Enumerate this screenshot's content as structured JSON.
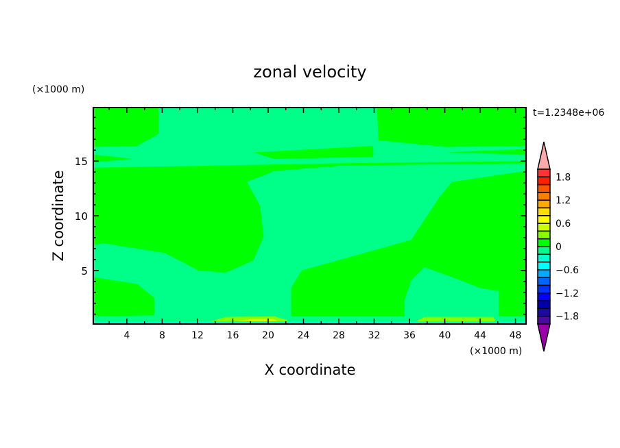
{
  "chart_data": {
    "type": "heatmap",
    "subtype": "filled-contour",
    "title": "zonal velocity",
    "xlabel": "X coordinate",
    "ylabel": "Z coordinate",
    "x_unit": "(×1000 m)",
    "y_unit": "(×1000 m)",
    "time_label": "t=1.2348e+06",
    "xlim": [
      0.2,
      49.2
    ],
    "ylim": [
      0.1,
      19.9
    ],
    "xticks": [
      4,
      8,
      12,
      16,
      20,
      24,
      28,
      32,
      36,
      40,
      44,
      48
    ],
    "yticks": [
      5,
      10,
      15
    ],
    "background_level": 0.1,
    "regions": [
      {
        "level": -0.1,
        "points": [
          [
            7.6,
            19.9
          ],
          [
            32.3,
            19.9
          ],
          [
            32.5,
            16.9
          ],
          [
            40.1,
            16.3
          ],
          [
            49.2,
            16.4
          ],
          [
            49.2,
            15.0
          ],
          [
            28.4,
            14.8
          ],
          [
            0.2,
            14.4
          ],
          [
            0.2,
            16.3
          ],
          [
            5.2,
            16.4
          ],
          [
            7.6,
            17.5
          ]
        ]
      },
      {
        "level": 0.1,
        "points": [
          [
            18.4,
            15.8
          ],
          [
            31.9,
            16.4
          ],
          [
            31.9,
            15.4
          ],
          [
            20.7,
            15.2
          ]
        ]
      },
      {
        "level": 0.1,
        "points": [
          [
            0.2,
            15.6
          ],
          [
            4.8,
            15.2
          ],
          [
            0.2,
            14.9
          ]
        ]
      },
      {
        "level": 0.1,
        "points": [
          [
            40.1,
            15.8
          ],
          [
            49.2,
            16.1
          ],
          [
            49.2,
            15.6
          ]
        ]
      },
      {
        "level": -0.1,
        "points": [
          [
            17.6,
            13.1
          ],
          [
            20.7,
            14.1
          ],
          [
            28.4,
            14.6
          ],
          [
            49.2,
            14.8
          ],
          [
            49.2,
            14.1
          ],
          [
            40.8,
            13.1
          ],
          [
            39.3,
            11.6
          ],
          [
            36.2,
            7.8
          ],
          [
            23.8,
            5.0
          ],
          [
            22.6,
            3.4
          ],
          [
            22.6,
            0.1
          ],
          [
            0.2,
            0.1
          ],
          [
            0.2,
            7.3
          ],
          [
            1.3,
            7.5
          ],
          [
            8.3,
            6.6
          ],
          [
            12.1,
            5.0
          ],
          [
            15.2,
            4.8
          ],
          [
            18.3,
            5.9
          ],
          [
            19.5,
            8.1
          ],
          [
            19.1,
            10.9
          ]
        ]
      },
      {
        "level": 0.1,
        "points": [
          [
            0.2,
            4.4
          ],
          [
            5.2,
            3.75
          ],
          [
            7.1,
            2.5
          ],
          [
            7.1,
            0.9
          ],
          [
            0.2,
            0.8
          ]
        ]
      },
      {
        "level": -0.1,
        "points": [
          [
            36.2,
            4.1
          ],
          [
            37.7,
            5.3
          ],
          [
            40.8,
            4.4
          ],
          [
            44.0,
            3.4
          ],
          [
            46.1,
            3.1
          ],
          [
            46.1,
            0.1
          ],
          [
            35.4,
            0.1
          ],
          [
            35.4,
            2.2
          ]
        ]
      },
      {
        "level": -0.1,
        "points": [
          [
            0.2,
            0.1
          ],
          [
            49.2,
            0.1
          ],
          [
            49.2,
            0.8
          ],
          [
            0.2,
            0.8
          ]
        ]
      },
      {
        "level": 0.3,
        "points": [
          [
            12.9,
            0.2
          ],
          [
            15.2,
            0.75
          ],
          [
            20.7,
            0.8
          ],
          [
            22.2,
            0.45
          ],
          [
            22.2,
            0.1
          ]
        ]
      },
      {
        "level": 0.3,
        "points": [
          [
            36.2,
            0.1
          ],
          [
            37.7,
            0.75
          ],
          [
            45.5,
            0.75
          ],
          [
            45.9,
            0.1
          ]
        ]
      },
      {
        "level": 0.5,
        "points": [
          [
            16.0,
            0.3
          ],
          [
            18.4,
            0.6
          ],
          [
            20.7,
            0.55
          ],
          [
            21.1,
            0.3
          ]
        ]
      },
      {
        "level": -0.3,
        "points": [
          [
            0.2,
            0.1
          ],
          [
            49.2,
            0.1
          ],
          [
            49.2,
            0.35
          ],
          [
            0.2,
            0.35
          ]
        ]
      }
    ],
    "colorbar": {
      "min": -2.0,
      "max": 2.0,
      "step": 0.2,
      "labels": [
        "1.8",
        "1.2",
        "0.6",
        "0",
        "−0.6",
        "−1.2",
        "−1.8"
      ],
      "label_values": [
        1.8,
        1.2,
        0.6,
        0,
        -0.6,
        -1.2,
        -1.8
      ],
      "colors_high_to_low": [
        "#ff3333",
        "#ff2200",
        "#ff5500",
        "#ff7f00",
        "#ffaa00",
        "#ffdd00",
        "#ffff00",
        "#ccff00",
        "#88ff00",
        "#00ff00",
        "#00ff88",
        "#00ffcc",
        "#00ffff",
        "#00aaff",
        "#0066ff",
        "#0033ff",
        "#0000ff",
        "#0000aa",
        "#1a0aa0",
        "#4b0aa0"
      ],
      "over_color": "#ffaaaa",
      "under_color": "#9900aa"
    }
  }
}
